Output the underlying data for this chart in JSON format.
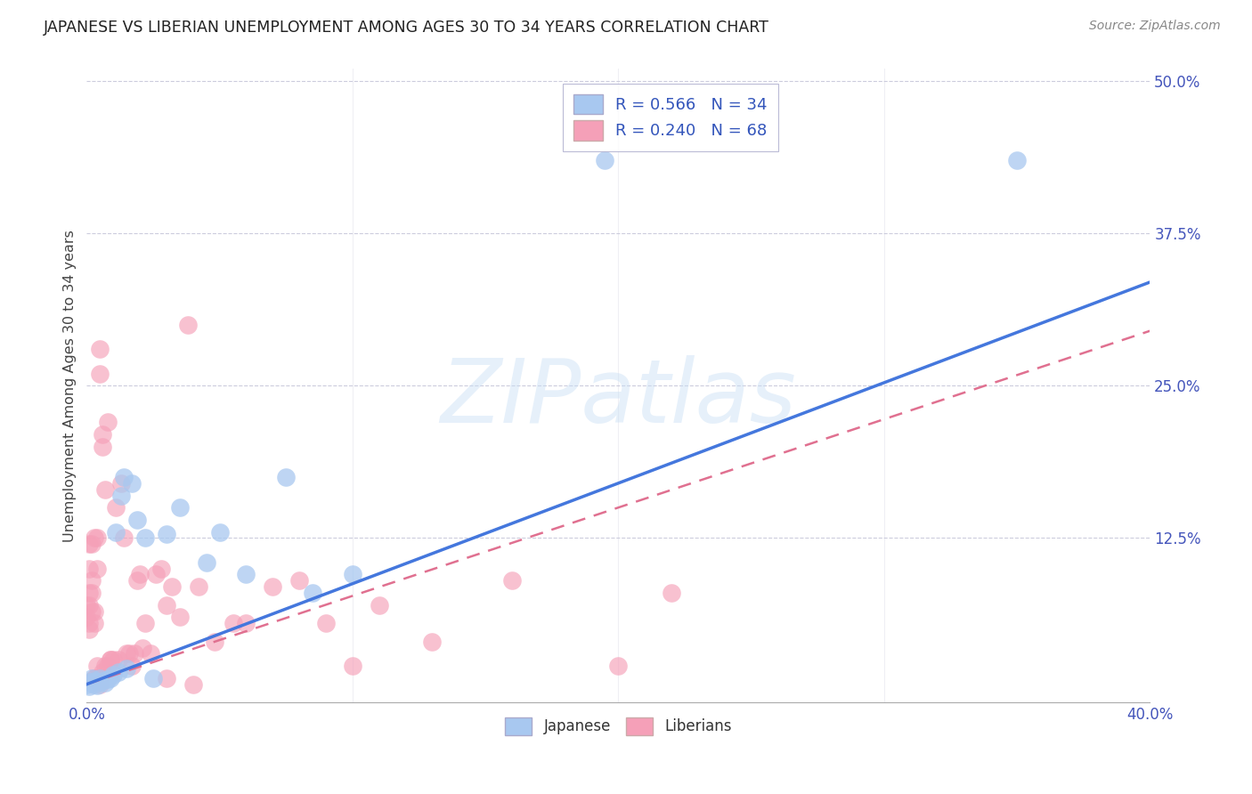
{
  "title": "JAPANESE VS LIBERIAN UNEMPLOYMENT AMONG AGES 30 TO 34 YEARS CORRELATION CHART",
  "source": "Source: ZipAtlas.com",
  "ylabel": "Unemployment Among Ages 30 to 34 years",
  "xlim": [
    0.0,
    0.4
  ],
  "ylim": [
    -0.02,
    0.52
  ],
  "plot_ylim": [
    0.0,
    0.5
  ],
  "xtick_positions": [
    0.0,
    0.4
  ],
  "xtick_labels": [
    "0.0%",
    "40.0%"
  ],
  "ytick_positions": [
    0.125,
    0.25,
    0.375,
    0.5
  ],
  "ytick_labels": [
    "12.5%",
    "25.0%",
    "37.5%",
    "50.0%"
  ],
  "watermark": "ZIPatlas",
  "legend_label1": "R = 0.566   N = 34",
  "legend_label2": "R = 0.240   N = 68",
  "legend_bottom_label1": "Japanese",
  "legend_bottom_label2": "Liberians",
  "japanese_color": "#a8c8f0",
  "liberian_color": "#f5a0b8",
  "regression_japanese_color": "#4477dd",
  "regression_liberian_color": "#e07090",
  "japanese_x": [
    0.0,
    0.001,
    0.001,
    0.002,
    0.002,
    0.003,
    0.003,
    0.004,
    0.005,
    0.005,
    0.006,
    0.007,
    0.008,
    0.009,
    0.01,
    0.011,
    0.012,
    0.013,
    0.014,
    0.015,
    0.017,
    0.019,
    0.022,
    0.025,
    0.03,
    0.035,
    0.045,
    0.05,
    0.06,
    0.075,
    0.085,
    0.1,
    0.195,
    0.35
  ],
  "japanese_y": [
    0.005,
    0.007,
    0.003,
    0.006,
    0.01,
    0.005,
    0.008,
    0.004,
    0.007,
    0.01,
    0.008,
    0.006,
    0.009,
    0.01,
    0.013,
    0.13,
    0.015,
    0.16,
    0.175,
    0.018,
    0.17,
    0.14,
    0.125,
    0.01,
    0.128,
    0.15,
    0.105,
    0.13,
    0.095,
    0.175,
    0.08,
    0.095,
    0.435,
    0.435
  ],
  "liberian_x": [
    0.0,
    0.0,
    0.001,
    0.001,
    0.001,
    0.001,
    0.001,
    0.001,
    0.002,
    0.002,
    0.002,
    0.002,
    0.003,
    0.003,
    0.003,
    0.003,
    0.003,
    0.004,
    0.004,
    0.004,
    0.005,
    0.005,
    0.005,
    0.005,
    0.006,
    0.006,
    0.006,
    0.007,
    0.007,
    0.008,
    0.008,
    0.009,
    0.009,
    0.01,
    0.011,
    0.012,
    0.013,
    0.014,
    0.015,
    0.016,
    0.017,
    0.018,
    0.019,
    0.02,
    0.021,
    0.022,
    0.024,
    0.026,
    0.028,
    0.03,
    0.032,
    0.035,
    0.038,
    0.042,
    0.048,
    0.055,
    0.06,
    0.07,
    0.08,
    0.09,
    0.1,
    0.11,
    0.13,
    0.16,
    0.2,
    0.22,
    0.03,
    0.04
  ],
  "liberian_y": [
    0.06,
    0.07,
    0.07,
    0.08,
    0.1,
    0.12,
    0.055,
    0.05,
    0.065,
    0.09,
    0.08,
    0.12,
    0.01,
    0.065,
    0.055,
    0.125,
    0.01,
    0.1,
    0.125,
    0.02,
    0.26,
    0.01,
    0.005,
    0.28,
    0.015,
    0.21,
    0.2,
    0.02,
    0.165,
    0.02,
    0.22,
    0.025,
    0.025,
    0.025,
    0.15,
    0.025,
    0.17,
    0.125,
    0.03,
    0.03,
    0.02,
    0.03,
    0.09,
    0.095,
    0.035,
    0.055,
    0.03,
    0.095,
    0.1,
    0.07,
    0.085,
    0.06,
    0.3,
    0.085,
    0.04,
    0.055,
    0.055,
    0.085,
    0.09,
    0.055,
    0.02,
    0.07,
    0.04,
    0.09,
    0.02,
    0.08,
    0.01,
    0.005
  ],
  "regression_japanese_x0": 0.0,
  "regression_japanese_y0": 0.005,
  "regression_japanese_x1": 0.4,
  "regression_japanese_y1": 0.335,
  "regression_liberian_x0": 0.0,
  "regression_liberian_y0": 0.005,
  "regression_liberian_x1": 0.4,
  "regression_liberian_y1": 0.295
}
